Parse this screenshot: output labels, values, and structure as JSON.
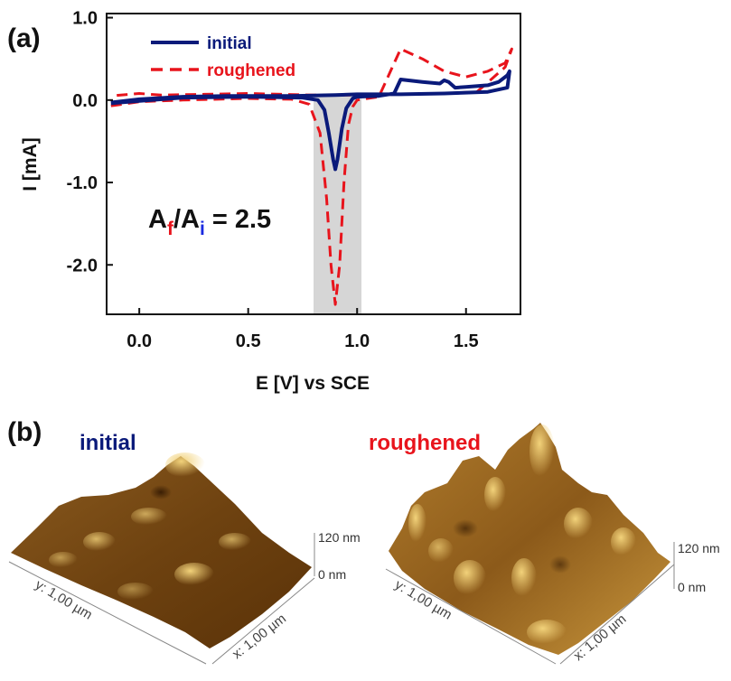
{
  "panels": {
    "a_label": "(a)",
    "b_label": "(b)"
  },
  "chart_data": {
    "type": "line",
    "xlabel": "E [V] vs SCE",
    "ylabel": "I [mA]",
    "xlim": [
      -0.15,
      1.75
    ],
    "ylim": [
      -2.6,
      1.05
    ],
    "xticks": [
      0.0,
      0.5,
      1.0,
      1.5
    ],
    "yticks": [
      1.0,
      0.0,
      -1.0,
      -2.0
    ],
    "xtick_labels": [
      "0.0",
      "0.5",
      "1.0",
      "1.5"
    ],
    "ytick_labels": [
      "1.0",
      "0.0",
      "-1.0",
      "-2.0"
    ],
    "legend_placement": "top-left",
    "highlight_region": {
      "x_range": [
        0.8,
        1.02
      ],
      "color": "#d6d6d6"
    },
    "annotation": {
      "A": "A",
      "f": "f",
      "slash": "/",
      "A2": "A",
      "i": "i",
      "value": " = 2.5"
    },
    "series": [
      {
        "name": "initial",
        "color": "#0a1a7a",
        "style": "solid",
        "x": [
          -0.13,
          0.0,
          0.2,
          0.5,
          0.75,
          0.82,
          0.85,
          0.87,
          0.89,
          0.9,
          0.91,
          0.93,
          0.95,
          0.98,
          1.0,
          1.1,
          1.17,
          1.2,
          1.3,
          1.38,
          1.4,
          1.42,
          1.45,
          1.5,
          1.6,
          1.65,
          1.69,
          1.7,
          1.69,
          1.6,
          1.4,
          1.2,
          1.0,
          0.9,
          0.7,
          0.4,
          0.2,
          0.0,
          -0.13
        ],
        "y": [
          -0.04,
          -0.01,
          0.03,
          0.04,
          0.03,
          0.0,
          -0.12,
          -0.4,
          -0.72,
          -0.84,
          -0.72,
          -0.35,
          -0.1,
          0.02,
          0.04,
          0.05,
          0.08,
          0.25,
          0.22,
          0.2,
          0.24,
          0.22,
          0.15,
          0.16,
          0.18,
          0.22,
          0.3,
          0.35,
          0.15,
          0.1,
          0.08,
          0.07,
          0.07,
          0.06,
          0.05,
          0.05,
          0.04,
          0.01,
          -0.03
        ]
      },
      {
        "name": "roughened",
        "color": "#e8141c",
        "style": "dashed",
        "x": [
          -0.13,
          -0.05,
          0.0,
          0.2,
          0.5,
          0.7,
          0.78,
          0.83,
          0.86,
          0.88,
          0.9,
          0.92,
          0.94,
          0.96,
          0.98,
          1.0,
          1.1,
          1.2,
          1.3,
          1.4,
          1.5,
          1.6,
          1.68,
          1.71,
          1.68,
          1.55,
          1.4,
          1.2,
          1.0,
          0.8,
          0.5,
          0.3,
          0.1,
          0.0,
          -0.13
        ],
        "y": [
          -0.07,
          -0.04,
          -0.02,
          0.0,
          0.02,
          0.01,
          -0.05,
          -0.4,
          -1.2,
          -2.0,
          -2.48,
          -2.0,
          -1.0,
          -0.3,
          -0.08,
          0.0,
          0.04,
          0.62,
          0.5,
          0.35,
          0.28,
          0.35,
          0.45,
          0.62,
          0.4,
          0.1,
          0.08,
          0.07,
          0.06,
          0.06,
          0.08,
          0.07,
          0.06,
          0.08,
          0.05
        ]
      }
    ]
  },
  "afm": {
    "initial": {
      "title": "initial",
      "title_color": "#0a1a7a",
      "scale_top": "120 nm",
      "scale_bottom": "0 nm",
      "y_axis": "y: 1,00 µm",
      "x_axis": "x: 1,00 µm"
    },
    "roughened": {
      "title": "roughened",
      "title_color": "#e8141c",
      "scale_top": "120 nm",
      "scale_bottom": "0 nm",
      "y_axis": "y: 1,00 µm",
      "x_axis": "x: 1,00 µm"
    }
  }
}
